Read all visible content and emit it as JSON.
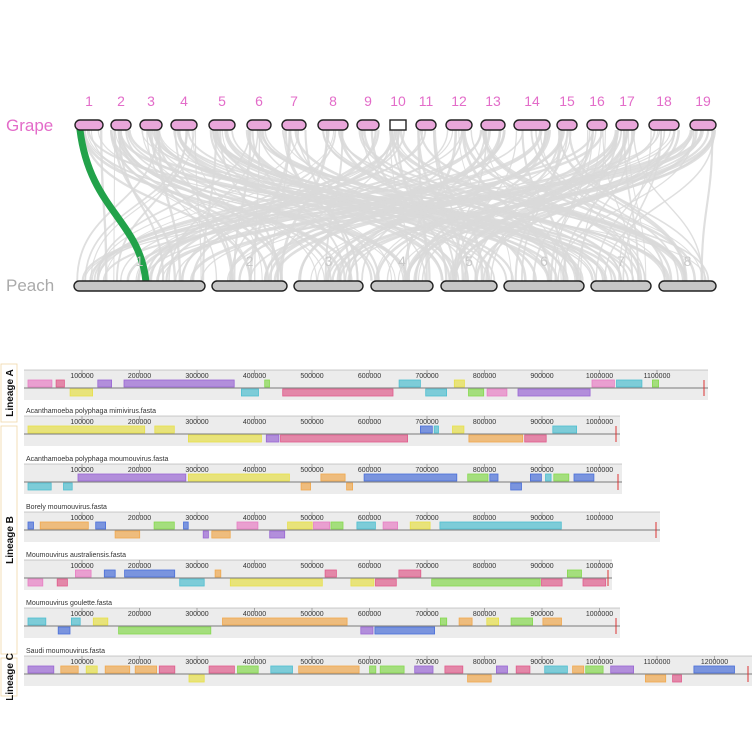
{
  "synteny": {
    "top_genome": "Grape",
    "bottom_genome": "Peach",
    "top_chromosomes": [
      "1",
      "2",
      "3",
      "4",
      "5",
      "6",
      "7",
      "8",
      "9",
      "10",
      "11",
      "12",
      "13",
      "14",
      "15",
      "16",
      "17",
      "18",
      "19"
    ],
    "bottom_chromosomes": [
      "1",
      "2",
      "3",
      "4",
      "5",
      "6",
      "7",
      "8"
    ],
    "highlighted_link": {
      "from": "1",
      "to": "1",
      "color": "#22a24a"
    },
    "top_color": "#e36cc9",
    "top_fill": "#e9a6da",
    "bottom_color": "#aaaaaa",
    "bottom_fill": "#c6c6c6",
    "link_color": "#d9d9d9"
  },
  "mauve": {
    "lineages": [
      {
        "label": "Lineage A",
        "tracks": [
          0
        ]
      },
      {
        "label": "Lineage B",
        "tracks": [
          1,
          2,
          3,
          4,
          5
        ]
      },
      {
        "label": "Lineage C",
        "tracks": [
          6
        ]
      }
    ],
    "tracks": [
      {
        "name": "",
        "ticks": [
          "100000",
          "200000",
          "300000",
          "400000",
          "500000",
          "600000",
          "700000",
          "800000",
          "900000",
          "1000000",
          "1100000"
        ]
      },
      {
        "name": "Acanthamoeba polyphaga mimivirus.fasta",
        "ticks": [
          "100000",
          "200000",
          "300000",
          "400000",
          "500000",
          "600000",
          "700000",
          "800000",
          "900000",
          "1000000"
        ]
      },
      {
        "name": "Acanthamoeba polyphaga moumouvirus.fasta",
        "ticks": [
          "100000",
          "200000",
          "300000",
          "400000",
          "500000",
          "600000",
          "700000",
          "800000",
          "900000",
          "1000000"
        ]
      },
      {
        "name": "Borely moumouvirus.fasta",
        "ticks": [
          "100000",
          "200000",
          "300000",
          "400000",
          "500000",
          "600000",
          "700000",
          "800000",
          "900000",
          "1000000"
        ]
      },
      {
        "name": "Moumouvirus australiensis.fasta",
        "ticks": [
          "100000",
          "200000",
          "300000",
          "400000",
          "500000",
          "600000",
          "700000",
          "800000",
          "900000",
          "1000000"
        ]
      },
      {
        "name": "Moumouvirus goulette.fasta",
        "ticks": [
          "100000",
          "200000",
          "300000",
          "400000",
          "500000",
          "600000",
          "700000",
          "800000",
          "900000",
          "1000000"
        ]
      },
      {
        "name": "Saudi moumouvirus.fasta",
        "ticks": [
          "100000",
          "200000",
          "300000",
          "400000",
          "500000",
          "600000",
          "700000",
          "800000",
          "900000",
          "1000000",
          "1100000",
          "1200000"
        ]
      }
    ],
    "block_colors": [
      "#e87fc4",
      "#f0a84e",
      "#9a66d4",
      "#86d94f",
      "#e7e04a",
      "#4fbfd0",
      "#e05c8c",
      "#4a6fd9"
    ]
  }
}
